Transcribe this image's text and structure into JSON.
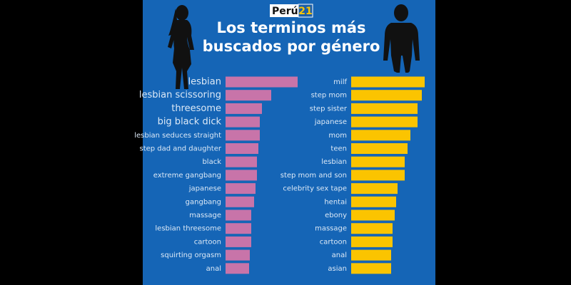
{
  "header": {
    "logo_name": "Perú",
    "logo_number": "21",
    "title_lines": [
      "Los terminos más",
      "buscados por género"
    ]
  },
  "chart_data": [
    {
      "type": "hbar",
      "color": "#c874a9",
      "xlim": [
        0,
        100
      ],
      "categories": [
        "lesbian",
        "lesbian scissoring",
        "threesome",
        "big black dick",
        "lesbian seduces straight",
        "step dad and daughter",
        "black",
        "extreme gangbang",
        "japanese",
        "gangbang",
        "massage",
        "lesbian threesome",
        "cartoon",
        "squirting orgasm",
        "anal"
      ],
      "values": [
        101,
        64,
        51,
        48,
        48,
        46,
        44,
        44,
        42,
        40,
        36,
        36,
        36,
        34,
        33
      ]
    },
    {
      "type": "hbar",
      "color": "#fbc400",
      "xlim": [
        0,
        100
      ],
      "categories": [
        "milf",
        "step mom",
        "step sister",
        "japanese",
        "mom",
        "teen",
        "lesbian",
        "step mom and son",
        "celebrity sex tape",
        "hentai",
        "ebony",
        "massage",
        "cartoon",
        "anal",
        "asian"
      ],
      "values": [
        103,
        99,
        93,
        93,
        83,
        79,
        75,
        75,
        65,
        63,
        61,
        58,
        58,
        56,
        56
      ]
    }
  ]
}
